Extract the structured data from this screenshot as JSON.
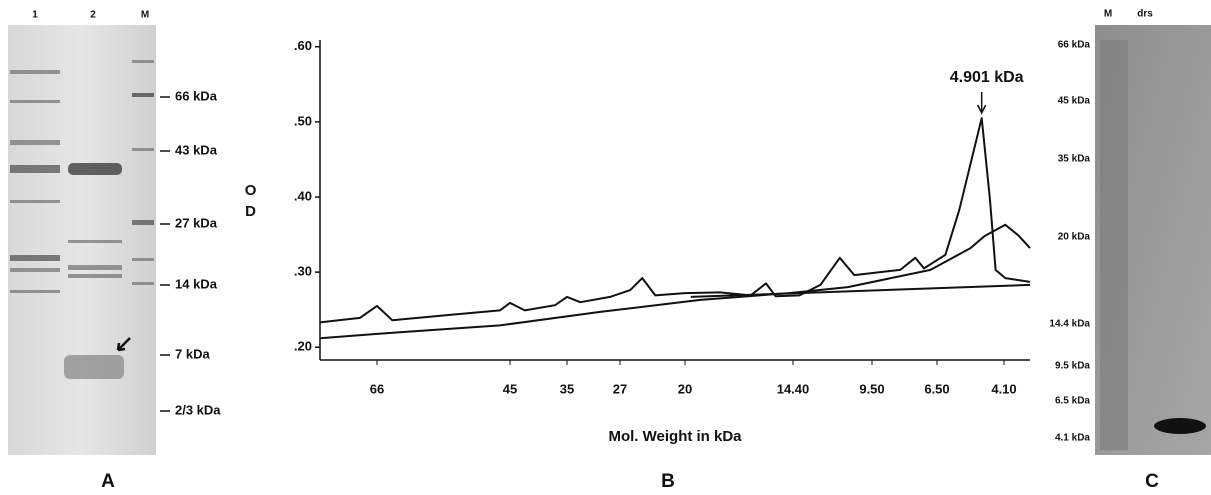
{
  "chart_data": {
    "type": "line",
    "y_label": "OD",
    "x_label": "Mol. Weight in kDa",
    "annotation": "4.901 kDa",
    "annotation_x": 4.9,
    "xlim": [
      85,
      3.7
    ],
    "xticks": [
      66,
      45,
      35,
      27,
      20,
      {
        "value": 14.4,
        "label": "14.40"
      },
      {
        "value": 9.5,
        "label": "9.50"
      },
      {
        "value": 6.5,
        "label": "6.50"
      },
      {
        "value": 4.1,
        "label": "4.10"
      }
    ],
    "ylim": [
      0.183,
      0.609
    ],
    "yticks": [
      {
        "value": 0.6,
        "label": ".60"
      },
      {
        "value": 0.5,
        "label": ".50"
      },
      {
        "value": 0.4,
        "label": ".40"
      },
      {
        "value": 0.3,
        "label": ".30"
      },
      {
        "value": 0.2,
        "label": ".20"
      }
    ],
    "series": [
      {
        "color": "#111111",
        "x": [
          85,
          71.7,
          66,
          63.6,
          54.5,
          46.6,
          45,
          42.4,
          37.1,
          35,
          33,
          28.5,
          25.9,
          24.6,
          23.2,
          20,
          18.2,
          16.6,
          15.8,
          15.3,
          14,
          12.7,
          11.5,
          10.6,
          8.2,
          7.5,
          7.1,
          6.2,
          5.7,
          4.9,
          4.6,
          4.4,
          4.08,
          3.7
        ],
        "values": [
          0.233,
          0.239,
          0.255,
          0.236,
          0.243,
          0.249,
          0.259,
          0.249,
          0.256,
          0.267,
          0.26,
          0.267,
          0.276,
          0.292,
          0.269,
          0.272,
          0.273,
          0.269,
          0.285,
          0.268,
          0.269,
          0.283,
          0.319,
          0.296,
          0.303,
          0.319,
          0.305,
          0.323,
          0.383,
          0.505,
          0.396,
          0.303,
          0.292,
          0.287
        ]
      },
      {
        "color": "#111111",
        "x": [
          85,
          62.4,
          46.6,
          30,
          19.2,
          14.6,
          11,
          6.8,
          5.3,
          4.8,
          4.08,
          3.88,
          3.7
        ],
        "values": [
          0.212,
          0.22,
          0.229,
          0.247,
          0.263,
          0.272,
          0.28,
          0.303,
          0.332,
          0.348,
          0.363,
          0.349,
          0.332
        ]
      },
      {
        "color": "#111111",
        "x": [
          19.7,
          3.7
        ],
        "values": [
          0.267,
          0.283
        ]
      }
    ]
  },
  "gel_a": {
    "lanes": [
      "1",
      "2",
      "M"
    ],
    "markers": [
      "66 kDa",
      "43 kDa",
      "27 kDa",
      "14 kDa",
      "7 kDa",
      "2/3 kDa"
    ]
  },
  "gel_c": {
    "lanes": [
      "M",
      "drs"
    ],
    "markers": [
      "66 kDa",
      "45 kDa",
      "35 kDa",
      "20 kDa",
      "14.4 kDa",
      "9.5 kDa",
      "6.5 kDa",
      "4.1 kDa"
    ]
  },
  "panel_labels": [
    "A",
    "B",
    "C"
  ]
}
